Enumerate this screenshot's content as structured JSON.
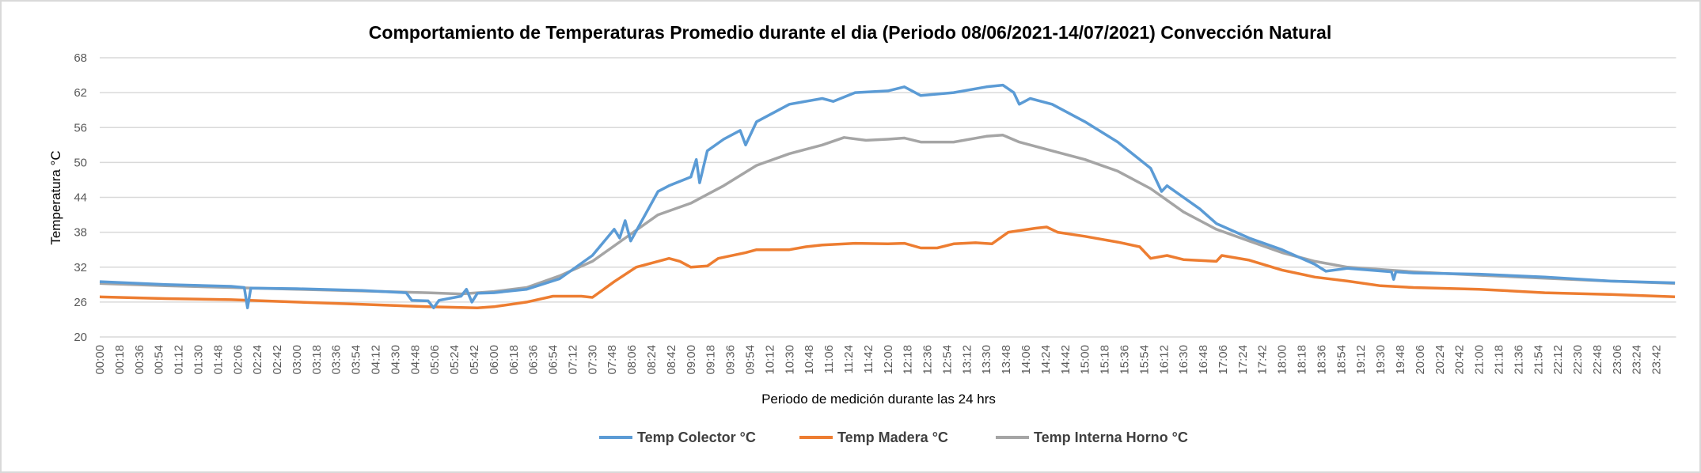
{
  "chart_data": {
    "type": "line",
    "title": "Comportamiento de Temperaturas Promedio durante el dia (Periodo 08/06/2021-14/07/2021) Convección Natural",
    "xlabel": "Periodo de medición durante las 24 hrs",
    "ylabel": "Temperatura °C",
    "ylim": [
      20,
      68
    ],
    "yticks": [
      "20",
      "26",
      "32",
      "38",
      "44",
      "50",
      "56",
      "62",
      "68"
    ],
    "xlim": [
      "00:00",
      "23:59"
    ],
    "xticks": [
      "00:00",
      "00:18",
      "00:36",
      "00:54",
      "01:12",
      "01:30",
      "01:48",
      "02:06",
      "02:24",
      "02:42",
      "03:00",
      "03:18",
      "03:36",
      "03:54",
      "04:12",
      "04:30",
      "04:48",
      "05:06",
      "05:24",
      "05:42",
      "06:00",
      "06:18",
      "06:36",
      "06:54",
      "07:12",
      "07:30",
      "07:48",
      "08:06",
      "08:24",
      "08:42",
      "09:00",
      "09:18",
      "09:36",
      "09:54",
      "10:12",
      "10:30",
      "10:48",
      "11:06",
      "11:24",
      "11:42",
      "12:00",
      "12:18",
      "12:36",
      "12:54",
      "13:12",
      "13:30",
      "13:48",
      "14:06",
      "14:24",
      "14:42",
      "15:00",
      "15:18",
      "15:36",
      "15:54",
      "16:12",
      "16:30",
      "16:48",
      "17:06",
      "17:24",
      "17:42",
      "18:00",
      "18:18",
      "18:36",
      "18:54",
      "19:12",
      "19:30",
      "19:48",
      "20:06",
      "20:24",
      "20:42",
      "21:00",
      "21:18",
      "21:36",
      "21:54",
      "22:12",
      "22:30",
      "22:48",
      "23:06",
      "23:24",
      "23:42"
    ],
    "grid": "horizontal",
    "legend_position": "bottom",
    "series": [
      {
        "name": "Temp Colector °C",
        "color": "#5b9bd5",
        "points": [
          [
            "00:00",
            29.5
          ],
          [
            "01:00",
            29
          ],
          [
            "02:00",
            28.7
          ],
          [
            "02:12",
            28.5
          ],
          [
            "02:15",
            25
          ],
          [
            "02:18",
            28.4
          ],
          [
            "03:00",
            28.3
          ],
          [
            "04:00",
            28
          ],
          [
            "04:40",
            27.6
          ],
          [
            "04:45",
            26.3
          ],
          [
            "05:00",
            26.2
          ],
          [
            "05:05",
            25
          ],
          [
            "05:10",
            26.3
          ],
          [
            "05:30",
            27
          ],
          [
            "05:35",
            28.2
          ],
          [
            "05:40",
            26
          ],
          [
            "05:45",
            27.5
          ],
          [
            "06:00",
            27.6
          ],
          [
            "06:30",
            28.2
          ],
          [
            "07:00",
            30
          ],
          [
            "07:30",
            34
          ],
          [
            "07:50",
            38.5
          ],
          [
            "07:55",
            37
          ],
          [
            "08:00",
            40
          ],
          [
            "08:05",
            36.5
          ],
          [
            "08:30",
            45
          ],
          [
            "08:40",
            46
          ],
          [
            "09:00",
            47.5
          ],
          [
            "09:05",
            50.5
          ],
          [
            "09:08",
            46.5
          ],
          [
            "09:15",
            52
          ],
          [
            "09:30",
            54
          ],
          [
            "09:45",
            55.5
          ],
          [
            "09:50",
            53
          ],
          [
            "10:00",
            57
          ],
          [
            "10:30",
            60
          ],
          [
            "11:00",
            61
          ],
          [
            "11:10",
            60.5
          ],
          [
            "11:30",
            62
          ],
          [
            "12:00",
            62.3
          ],
          [
            "12:15",
            63
          ],
          [
            "12:30",
            61.5
          ],
          [
            "13:00",
            62
          ],
          [
            "13:30",
            63
          ],
          [
            "13:45",
            63.3
          ],
          [
            "13:55",
            62
          ],
          [
            "14:00",
            60
          ],
          [
            "14:10",
            61
          ],
          [
            "14:30",
            60
          ],
          [
            "15:00",
            57
          ],
          [
            "15:30",
            53.5
          ],
          [
            "16:00",
            49
          ],
          [
            "16:10",
            45
          ],
          [
            "16:15",
            46
          ],
          [
            "16:45",
            42
          ],
          [
            "17:00",
            39.5
          ],
          [
            "17:30",
            37
          ],
          [
            "18:00",
            35
          ],
          [
            "18:30",
            32.5
          ],
          [
            "18:40",
            31.3
          ],
          [
            "19:00",
            31.8
          ],
          [
            "19:40",
            31.2
          ],
          [
            "19:42",
            29.9
          ],
          [
            "19:44",
            31.2
          ],
          [
            "20:00",
            31
          ],
          [
            "21:00",
            30.8
          ],
          [
            "22:00",
            30.3
          ],
          [
            "23:00",
            29.6
          ],
          [
            "23:59",
            29.3
          ]
        ]
      },
      {
        "name": "Temp Madera °C",
        "color": "#ed7d31",
        "points": [
          [
            "00:00",
            26.9
          ],
          [
            "01:00",
            26.6
          ],
          [
            "02:00",
            26.4
          ],
          [
            "03:00",
            26
          ],
          [
            "04:00",
            25.6
          ],
          [
            "05:00",
            25.2
          ],
          [
            "05:45",
            25
          ],
          [
            "06:00",
            25.2
          ],
          [
            "06:30",
            26
          ],
          [
            "06:54",
            27
          ],
          [
            "07:20",
            27
          ],
          [
            "07:30",
            26.8
          ],
          [
            "07:50",
            29.5
          ],
          [
            "08:10",
            32
          ],
          [
            "08:30",
            33
          ],
          [
            "08:40",
            33.5
          ],
          [
            "08:50",
            33
          ],
          [
            "09:00",
            32
          ],
          [
            "09:15",
            32.2
          ],
          [
            "09:25",
            33.5
          ],
          [
            "09:50",
            34.5
          ],
          [
            "10:00",
            35
          ],
          [
            "10:30",
            35
          ],
          [
            "10:45",
            35.5
          ],
          [
            "11:00",
            35.8
          ],
          [
            "11:30",
            36.1
          ],
          [
            "12:00",
            36
          ],
          [
            "12:15",
            36.1
          ],
          [
            "12:30",
            35.3
          ],
          [
            "12:45",
            35.3
          ],
          [
            "13:00",
            36
          ],
          [
            "13:20",
            36.2
          ],
          [
            "13:35",
            36
          ],
          [
            "13:50",
            38
          ],
          [
            "14:15",
            38.7
          ],
          [
            "14:25",
            38.9
          ],
          [
            "14:35",
            38
          ],
          [
            "15:00",
            37.3
          ],
          [
            "15:30",
            36.3
          ],
          [
            "15:50",
            35.5
          ],
          [
            "16:00",
            33.5
          ],
          [
            "16:15",
            34
          ],
          [
            "16:30",
            33.3
          ],
          [
            "17:00",
            33
          ],
          [
            "17:05",
            34
          ],
          [
            "17:30",
            33.2
          ],
          [
            "18:00",
            31.5
          ],
          [
            "18:30",
            30.3
          ],
          [
            "19:00",
            29.6
          ],
          [
            "19:30",
            28.8
          ],
          [
            "20:00",
            28.5
          ],
          [
            "21:00",
            28.2
          ],
          [
            "22:00",
            27.6
          ],
          [
            "23:00",
            27.3
          ],
          [
            "23:59",
            26.9
          ]
        ]
      },
      {
        "name": "Temp Interna Horno °C",
        "color": "#a5a5a5",
        "points": [
          [
            "00:00",
            29.2
          ],
          [
            "01:00",
            28.8
          ],
          [
            "02:00",
            28.5
          ],
          [
            "03:00",
            28.2
          ],
          [
            "04:00",
            27.9
          ],
          [
            "05:00",
            27.6
          ],
          [
            "05:30",
            27.4
          ],
          [
            "06:00",
            27.8
          ],
          [
            "06:30",
            28.5
          ],
          [
            "07:00",
            30.5
          ],
          [
            "07:30",
            33
          ],
          [
            "08:00",
            37
          ],
          [
            "08:30",
            41
          ],
          [
            "09:00",
            43
          ],
          [
            "09:30",
            46
          ],
          [
            "10:00",
            49.5
          ],
          [
            "10:30",
            51.5
          ],
          [
            "11:00",
            53
          ],
          [
            "11:20",
            54.3
          ],
          [
            "11:40",
            53.8
          ],
          [
            "12:00",
            54
          ],
          [
            "12:15",
            54.2
          ],
          [
            "12:30",
            53.5
          ],
          [
            "13:00",
            53.5
          ],
          [
            "13:30",
            54.5
          ],
          [
            "13:45",
            54.7
          ],
          [
            "14:00",
            53.5
          ],
          [
            "14:30",
            52
          ],
          [
            "15:00",
            50.5
          ],
          [
            "15:30",
            48.5
          ],
          [
            "16:00",
            45.5
          ],
          [
            "16:30",
            41.5
          ],
          [
            "17:00",
            38.5
          ],
          [
            "17:30",
            36.5
          ],
          [
            "18:00",
            34.5
          ],
          [
            "18:30",
            33
          ],
          [
            "19:00",
            32
          ],
          [
            "20:00",
            31.2
          ],
          [
            "21:00",
            30.6
          ],
          [
            "22:00",
            30.1
          ],
          [
            "23:00",
            29.6
          ],
          [
            "23:59",
            29.2
          ]
        ]
      }
    ]
  }
}
